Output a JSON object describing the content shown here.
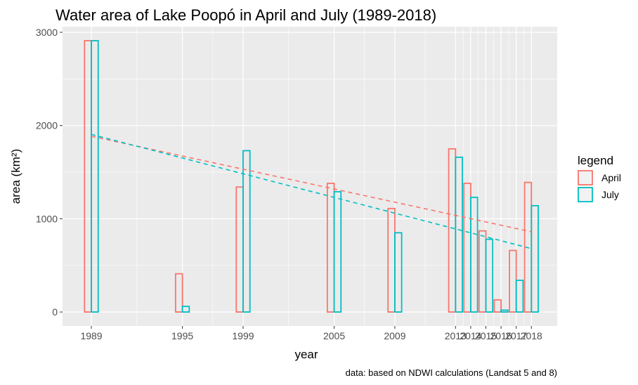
{
  "chart_data": {
    "type": "bar",
    "title": "Water area of Lake Poopó in April and July (1989-2018)",
    "xlabel": "year",
    "ylabel": "area (km²)",
    "caption": "data: based on NDWI calculations (Landsat 5 and 8)",
    "x": [
      1989,
      1995,
      1999,
      2005,
      2009,
      2013,
      2014,
      2015,
      2016,
      2017,
      2018
    ],
    "x_tick_labels": [
      "1989",
      "1995",
      "1999",
      "2005",
      "2009",
      "2013",
      "2014",
      "2015",
      "2016",
      "2017",
      "2018"
    ],
    "y_ticks": [
      0,
      1000,
      2000,
      3000
    ],
    "y_tick_labels": [
      "0",
      "1000",
      "2000",
      "3000"
    ],
    "xlim": [
      1987.1,
      2019.7
    ],
    "ylim": [
      -150,
      3060
    ],
    "series": [
      {
        "name": "April",
        "color": "#F8766D",
        "values": [
          2910,
          410,
          1340,
          1380,
          1110,
          1750,
          1380,
          870,
          130,
          660,
          1390
        ],
        "trend": [
          1885,
          860
        ]
      },
      {
        "name": "July",
        "color": "#00BFC4",
        "values": [
          2910,
          60,
          1730,
          1290,
          850,
          1660,
          1230,
          780,
          20,
          340,
          1140
        ],
        "trend": [
          1905,
          680
        ]
      }
    ],
    "grid": true,
    "legend": {
      "title": "legend",
      "position": "right",
      "entries": [
        "April",
        "July"
      ]
    }
  }
}
